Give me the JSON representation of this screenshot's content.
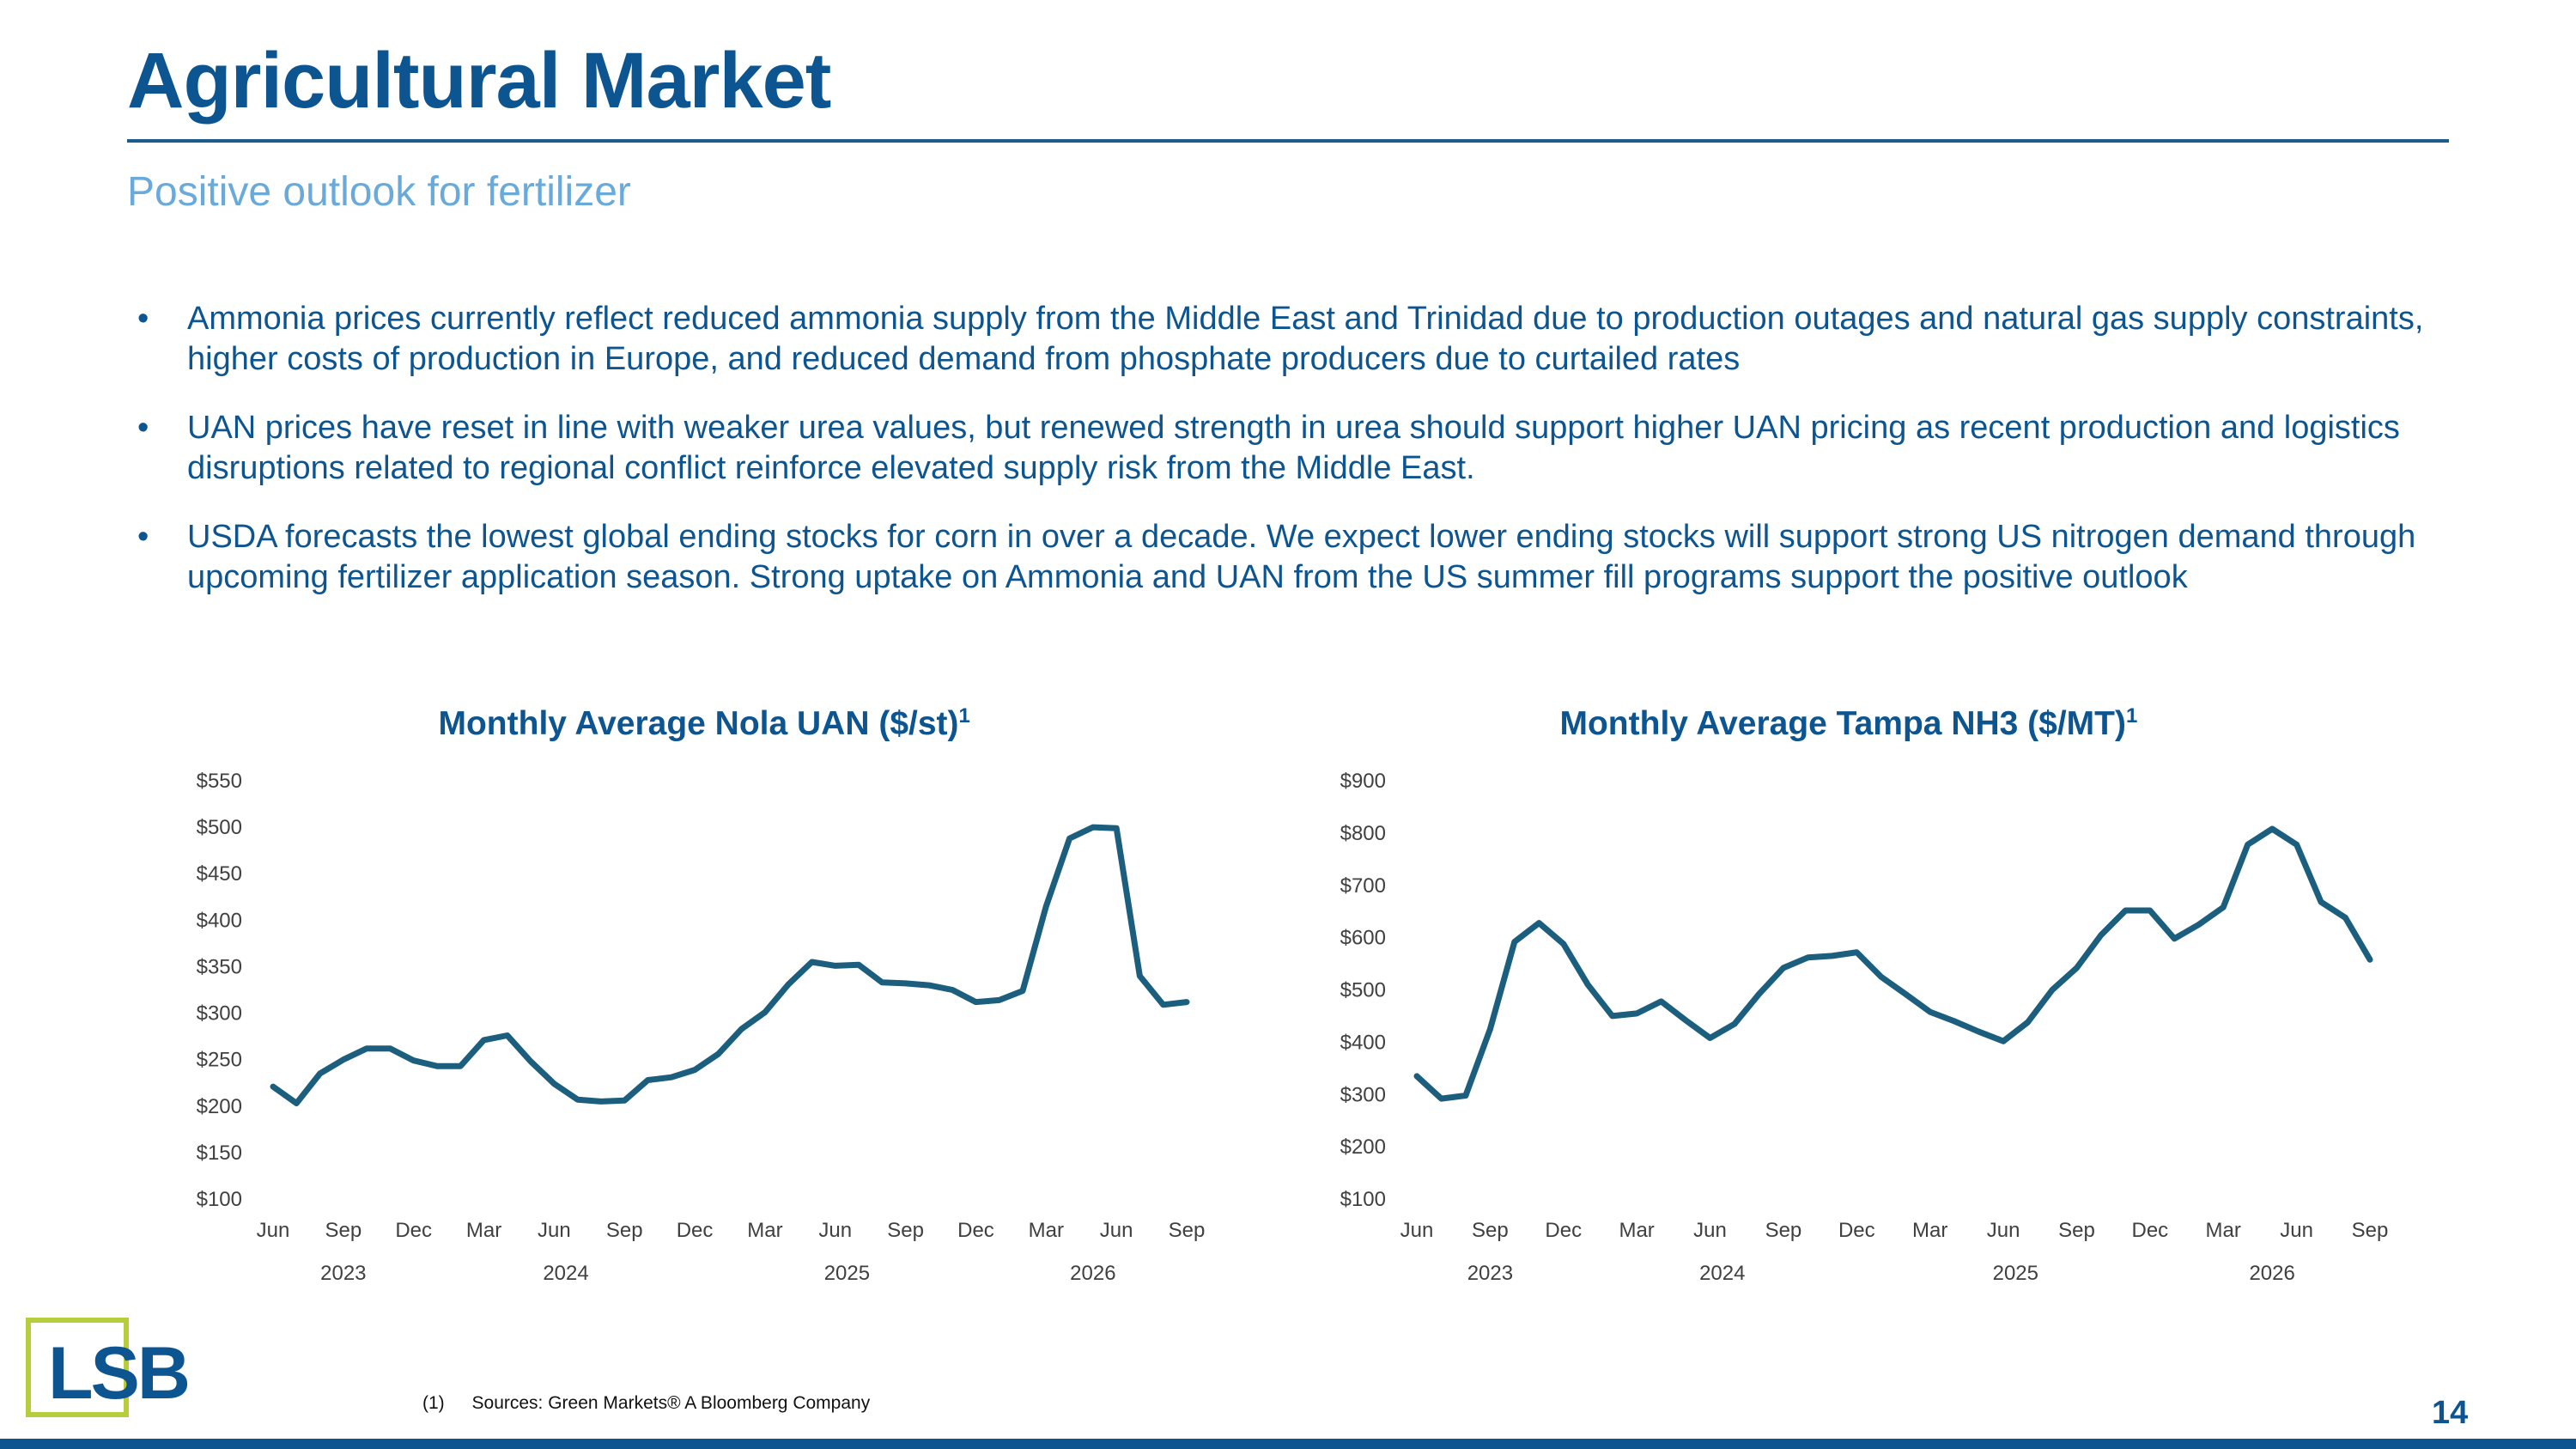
{
  "header": {
    "title": "Agricultural Market",
    "subtitle": "Positive outlook for fertilizer"
  },
  "bullets": [
    "Ammonia prices currently reflect reduced ammonia supply from the Middle East and Trinidad due to production outages and natural gas supply constraints, higher costs of production in Europe, and reduced demand from phosphate producers due to curtailed rates",
    "UAN prices have reset in line with weaker urea values, but renewed strength in urea should support higher UAN pricing as recent production and logistics disruptions related to regional conflict reinforce elevated supply risk from the Middle East.",
    "USDA forecasts the lowest global ending stocks for corn in over a decade. We expect lower ending stocks will support strong US nitrogen demand through upcoming fertilizer application season. Strong uptake on Ammonia and UAN from the US summer fill programs support the positive outlook"
  ],
  "bullet_marker": "•",
  "chart_data": [
    {
      "type": "line",
      "title": "Monthly Average Nola UAN ($/st)",
      "title_superscript": "1",
      "color": "#1b5e7e",
      "ylim": [
        100,
        550
      ],
      "yticks": [
        100,
        150,
        200,
        250,
        300,
        350,
        400,
        450,
        500,
        550
      ],
      "ytick_labels": [
        "$100",
        "$150",
        "$200",
        "$250",
        "$300",
        "$350",
        "$400",
        "$450",
        "$500",
        "$550"
      ],
      "xtick_labels": [
        "Jun",
        "Sep",
        "Dec",
        "Mar",
        "Jun",
        "Sep",
        "Dec",
        "Mar",
        "Jun",
        "Sep",
        "Dec",
        "Mar",
        "Jun",
        "Sep"
      ],
      "year_labels": [
        {
          "label": "2023",
          "month_index": 3
        },
        {
          "label": "2024",
          "month_index": 12.5
        },
        {
          "label": "2025",
          "month_index": 24.5
        },
        {
          "label": "2026",
          "month_index": 35
        }
      ],
      "grid": false,
      "series": [
        {
          "x": [
            "2023-06",
            "2023-07",
            "2023-08",
            "2023-09",
            "2023-10",
            "2023-11",
            "2023-12",
            "2024-01",
            "2024-02",
            "2024-03",
            "2024-04",
            "2024-05",
            "2024-06",
            "2024-07",
            "2024-08",
            "2024-09",
            "2024-10",
            "2024-11",
            "2024-12",
            "2025-01",
            "2025-02",
            "2025-03",
            "2025-04",
            "2025-05",
            "2025-06",
            "2025-07",
            "2025-08",
            "2025-09",
            "2025-10",
            "2025-11",
            "2025-12",
            "2026-01",
            "2026-02",
            "2026-03",
            "2026-04",
            "2026-05",
            "2026-06",
            "2026-07",
            "2026-08",
            "2026-09"
          ],
          "values": [
            221,
            203,
            235,
            250,
            262,
            262,
            249,
            243,
            243,
            271,
            276,
            248,
            224,
            207,
            205,
            206,
            228,
            231,
            239,
            256,
            283,
            301,
            331,
            355,
            351,
            352,
            333,
            332,
            330,
            325,
            312,
            314,
            324,
            415,
            488,
            500,
            499,
            340,
            309,
            312
          ]
        }
      ]
    },
    {
      "type": "line",
      "title": "Monthly Average Tampa NH3 ($/MT)",
      "title_superscript": "1",
      "color": "#1b5e7e",
      "ylim": [
        100,
        900
      ],
      "yticks": [
        100,
        200,
        300,
        400,
        500,
        600,
        700,
        800,
        900
      ],
      "ytick_labels": [
        "$100",
        "$200",
        "$300",
        "$400",
        "$500",
        "$600",
        "$700",
        "$800",
        "$900"
      ],
      "xtick_labels": [
        "Jun",
        "Sep",
        "Dec",
        "Mar",
        "Jun",
        "Sep",
        "Dec",
        "Mar",
        "Jun",
        "Sep",
        "Dec",
        "Mar",
        "Jun",
        "Sep"
      ],
      "year_labels": [
        {
          "label": "2023",
          "month_index": 3
        },
        {
          "label": "2024",
          "month_index": 12.5
        },
        {
          "label": "2025",
          "month_index": 24.5
        },
        {
          "label": "2026",
          "month_index": 35
        }
      ],
      "grid": false,
      "series": [
        {
          "x": [
            "2023-06",
            "2023-07",
            "2023-08",
            "2023-09",
            "2023-10",
            "2023-11",
            "2023-12",
            "2024-01",
            "2024-02",
            "2024-03",
            "2024-04",
            "2024-05",
            "2024-06",
            "2024-07",
            "2024-08",
            "2024-09",
            "2024-10",
            "2024-11",
            "2024-12",
            "2025-01",
            "2025-02",
            "2025-03",
            "2025-04",
            "2025-05",
            "2025-06",
            "2025-07",
            "2025-08",
            "2025-09",
            "2025-10",
            "2025-11",
            "2025-12",
            "2026-01",
            "2026-02",
            "2026-03",
            "2026-04",
            "2026-05",
            "2026-06",
            "2026-07",
            "2026-08",
            "2026-09"
          ],
          "values": [
            335,
            292,
            298,
            425,
            592,
            628,
            588,
            510,
            450,
            455,
            478,
            442,
            408,
            435,
            492,
            542,
            562,
            565,
            572,
            525,
            492,
            458,
            440,
            420,
            402,
            438,
            500,
            542,
            605,
            652,
            652,
            598,
            625,
            658,
            778,
            808,
            778,
            668,
            638,
            558
          ]
        }
      ]
    }
  ],
  "logo": {
    "text": "LSB",
    "border_color": "#b7cd3d"
  },
  "footnote": {
    "number": "(1)",
    "text": "Sources: Green Markets® A Bloomberg Company"
  },
  "page_number": "14"
}
